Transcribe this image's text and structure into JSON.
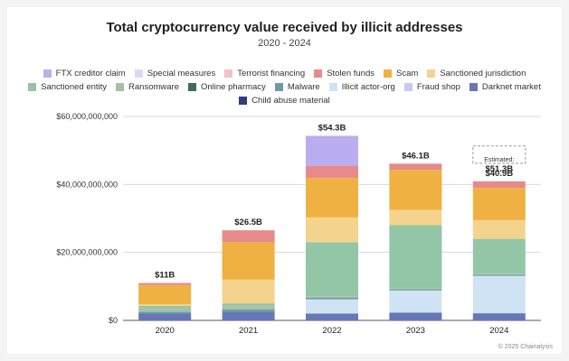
{
  "title": "Total cryptocurrency value received by illicit addresses",
  "subtitle": "2020 - 2024",
  "credit": "© 2025 Chainalysis",
  "chart_data": {
    "type": "bar",
    "stacked": true,
    "categories": [
      "2020",
      "2021",
      "2022",
      "2023",
      "2024"
    ],
    "ylim": [
      0,
      60000000000
    ],
    "yticks": [
      0,
      20000000000,
      40000000000,
      60000000000
    ],
    "ytick_labels": [
      "$0",
      "$20,000,000,000",
      "$40,000,000,000",
      "$60,000,000,000"
    ],
    "grid": true,
    "legend_position": "top",
    "series": [
      {
        "name": "Darknet market",
        "color": "#6677b8",
        "values": [
          2000000000.0,
          2600000000.0,
          2000000000.0,
          2300000000.0,
          2100000000.0
        ]
      },
      {
        "name": "Illicit actor-org",
        "color": "#cfe3f4",
        "values": [
          0,
          0,
          4200000000.0,
          6500000000.0,
          11000000000.0
        ]
      },
      {
        "name": "Malware",
        "color": "#6e9aa6",
        "values": [
          500000000.0,
          600000000.0,
          500000000.0,
          400000000.0,
          300000000.0
        ]
      },
      {
        "name": "Ransomware",
        "color": "#a7c0a6",
        "values": [
          1000000000.0,
          1000000000.0,
          300000000.0,
          300000000.0,
          200000000.0
        ]
      },
      {
        "name": "Sanctioned entity",
        "color": "#93c6a6",
        "values": [
          800000000.0,
          800000000.0,
          16000000000.0,
          18500000000.0,
          10400000000.0
        ]
      },
      {
        "name": "Sanctioned jurisdiction",
        "color": "#f4d38e",
        "values": [
          400000000.0,
          7000000000.0,
          7300000000.0,
          4500000000.0,
          5500000000.0
        ]
      },
      {
        "name": "Scam",
        "color": "#efb142",
        "values": [
          5700000000.0,
          11000000000.0,
          11600000000.0,
          11800000000.0,
          9500000000.0
        ]
      },
      {
        "name": "Stolen funds",
        "color": "#e68a8b",
        "values": [
          600000000.0,
          3500000000.0,
          3600000000.0,
          1800000000.0,
          1900000000.0
        ]
      },
      {
        "name": "FTX creditor claim",
        "color": "#bbaef0",
        "values": [
          0,
          0,
          8800000000.0,
          0,
          0
        ]
      }
    ],
    "totals_labels": [
      "$11B",
      "$26.5B",
      "$54.3B",
      "$46.1B",
      "$40.9B"
    ],
    "annotation": {
      "category": "2024",
      "label": "Estimated:",
      "value_label": "$51.3B",
      "value": 51300000000
    }
  },
  "legend": [
    {
      "name": "FTX creditor claim",
      "color": "#bbaef0"
    },
    {
      "name": "Special measures",
      "color": "#dcd7f6"
    },
    {
      "name": "Terrorist financing",
      "color": "#f2c3c3"
    },
    {
      "name": "Stolen funds",
      "color": "#e68a8b"
    },
    {
      "name": "Scam",
      "color": "#efb142"
    },
    {
      "name": "Sanctioned jurisdiction",
      "color": "#f4d38e"
    },
    {
      "name": "Sanctioned entity",
      "color": "#93c6a6"
    },
    {
      "name": "Ransomware",
      "color": "#a7c0a6"
    },
    {
      "name": "Online pharmacy",
      "color": "#3f6c56"
    },
    {
      "name": "Malware",
      "color": "#6e9aa6"
    },
    {
      "name": "Illicit actor-org",
      "color": "#cfe3f4"
    },
    {
      "name": "Fraud shop",
      "color": "#c4cbec"
    },
    {
      "name": "Darknet market",
      "color": "#6677b8"
    },
    {
      "name": "Child abuse material",
      "color": "#2f3d7a"
    }
  ]
}
